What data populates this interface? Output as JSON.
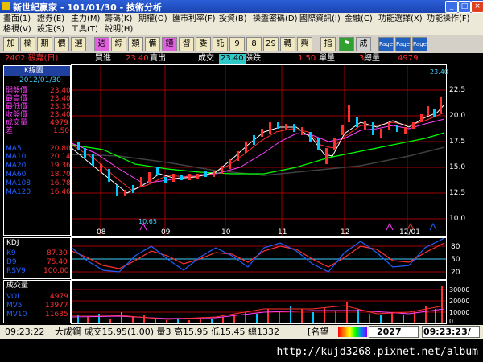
{
  "window": {
    "title": "新世紀贏家 - 101/01/30 - 技術分析"
  },
  "menu": {
    "row1": [
      "畫面(1)",
      "證券(E)",
      "主力(M)",
      "籌碼(K)",
      "期權(O)",
      "匯市利率(F)",
      "投資(B)",
      "操盤密碼(D)",
      "國際資訊(I)",
      "金融(C)",
      "功能選擇(X)",
      "功能操作(F)"
    ],
    "row2": [
      "格視(V)",
      "設定(S)",
      "工具(T)",
      "說明(H)"
    ]
  },
  "toolbar": {
    "buttons": [
      "加",
      "欄",
      "期",
      "價",
      "選",
      "週",
      "綜",
      "類",
      "備",
      "鐘",
      "習",
      "委",
      "託",
      "9",
      "8",
      "29",
      "轉",
      "興",
      "指",
      "⚑",
      "成",
      "Page",
      "Page",
      "Page"
    ]
  },
  "quote": {
    "symbol": "2402 毅嘉(日)",
    "buy_label": "買進",
    "buy_value": "23.40",
    "sell_label": "賣出",
    "deal_label": "成交",
    "deal_value": "23.40",
    "change_label": "漲跌",
    "change_value": "1.50",
    "single_label": "單量",
    "single_value": "3",
    "total_label": "總量",
    "total_value": "4979"
  },
  "kline": {
    "panel_title": "K線圖",
    "date": "2012/01/30",
    "fields": [
      {
        "label": "開盤價",
        "value": "23.40"
      },
      {
        "label": "最高價",
        "value": "23.40"
      },
      {
        "label": "最低價",
        "value": "23.35"
      },
      {
        "label": "收盤價",
        "value": "23.40"
      },
      {
        "label": "成交量",
        "value": "4979"
      },
      {
        "label": "差",
        "value": "1.50"
      }
    ],
    "ma": [
      {
        "label": "MA5",
        "value": "20.80",
        "color": "#ffffff"
      },
      {
        "label": "MA10",
        "value": "20.14",
        "color": "#ff3030"
      },
      {
        "label": "MA20",
        "value": "19.36",
        "color": "#ff40ff"
      },
      {
        "label": "MA60",
        "value": "18.70",
        "color": "#00ff00"
      },
      {
        "label": "MA108",
        "value": "16.78",
        "color": "#404040"
      },
      {
        "label": "MA120",
        "value": "16.46",
        "color": "#40d0ff"
      }
    ],
    "price_axis": [
      "22.5",
      "20.0",
      "17.5",
      "15.0",
      "12.5",
      "10.0"
    ],
    "high_mark": "23.40",
    "low_mark": "10.65",
    "months": [
      "08",
      "09",
      "10",
      "11",
      "12",
      "12/01"
    ]
  },
  "kdj": {
    "panel_title": "KDJ",
    "fields": [
      {
        "label": "K9",
        "value": "87.30",
        "color": "#2060ff"
      },
      {
        "label": "D9",
        "value": "75.40",
        "color": "#ff3030"
      },
      {
        "label": "RSV9",
        "value": "100.00",
        "color": "#40d0ff"
      }
    ],
    "axis": [
      "80",
      "50",
      "20"
    ]
  },
  "volume": {
    "panel_title": "成交量",
    "fields": [
      {
        "label": "VOL",
        "value": "4979",
        "color": "#ffffff"
      },
      {
        "label": "MV5",
        "value": "13977",
        "color": "#ff3030"
      },
      {
        "label": "MV10",
        "value": "11635",
        "color": "#ff40ff"
      }
    ],
    "axis": [
      "30000",
      "20000",
      "10000",
      "0"
    ]
  },
  "status": {
    "time": "09:23:22",
    "ticker_text": "大成鋼 成交15.95(1.00) 量3 高15.95 低15.45 總1332",
    "tag": "[名望",
    "index_value": "2027",
    "clock": "09:23:23/"
  },
  "watermark": "http://kujd3268.pixnet.net/album",
  "colors": {
    "up": "#ff3030",
    "down": "#00c8ff",
    "grid": "#c00000",
    "panel_border": "#ffffff"
  }
}
